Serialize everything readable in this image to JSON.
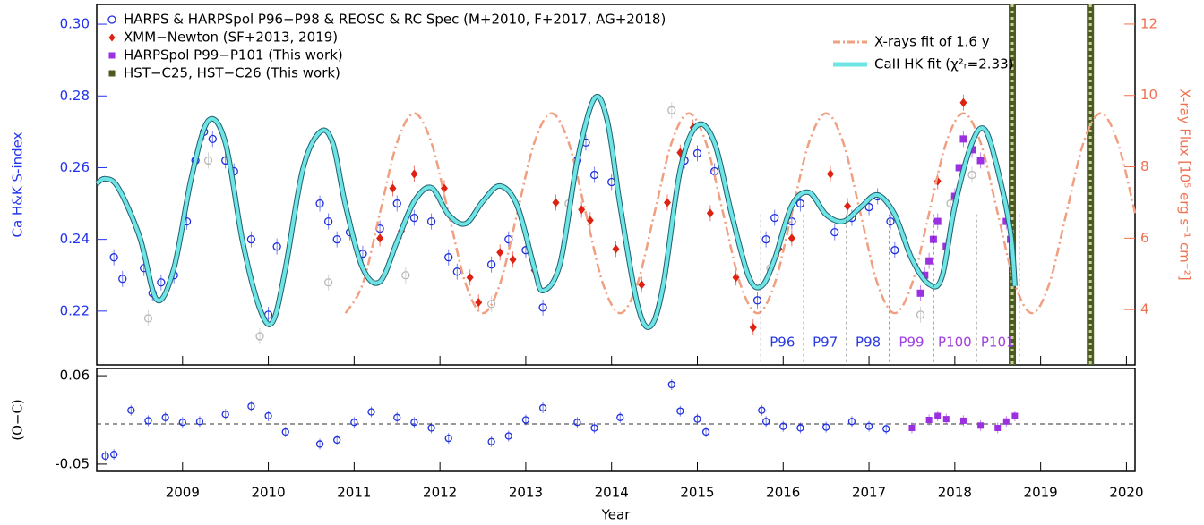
{
  "chart_data": [
    {
      "type": "scatter",
      "ylabel": "Ca H&K S-index",
      "y2label": "X-ray Flux [10⁵ erg s⁻¹ cm⁻²]",
      "xlim": [
        2008.0,
        2020.1
      ],
      "ylim": [
        0.205,
        0.3055
      ],
      "yticks": [
        0.22,
        0.24,
        0.26,
        0.28,
        {
          "value": 0.3,
          "label": "0.30"
        }
      ],
      "y2lim": [
        2.45,
        12.55
      ],
      "y2ticks": [
        4,
        6,
        8,
        10,
        12
      ],
      "ycolor": "#2233ee",
      "y2color": "#f07050",
      "series": [
        {
          "name": "HARPS & HARPSpol P96−P98 & REOSC & RC Spec (M+2010, F+2017, AG+2018)",
          "type": "scatter",
          "marker": "circle",
          "color": "#1f2fe0",
          "x": [
            2008.2,
            2008.3,
            2008.55,
            2008.65,
            2008.75,
            2008.9,
            2009.05,
            2009.15,
            2009.25,
            2009.35,
            2009.5,
            2009.6,
            2009.8,
            2010.0,
            2010.1,
            2010.6,
            2010.7,
            2010.8,
            2010.95,
            2011.1,
            2011.3,
            2011.5,
            2011.7,
            2011.9,
            2012.1,
            2012.2,
            2012.6,
            2012.8,
            2013.0,
            2013.2,
            2013.6,
            2013.7,
            2013.8,
            2014.0,
            2014.85,
            2015.0,
            2015.2,
            2015.7,
            2015.8,
            2015.9,
            2016.1,
            2016.2,
            2016.6,
            2016.8,
            2017.0,
            2017.1,
            2017.25,
            2017.3
          ],
          "values": [
            0.235,
            0.229,
            0.232,
            0.225,
            0.228,
            0.23,
            0.245,
            0.262,
            0.27,
            0.268,
            0.262,
            0.259,
            0.24,
            0.219,
            0.238,
            0.25,
            0.245,
            0.24,
            0.242,
            0.236,
            0.243,
            0.25,
            0.246,
            0.245,
            0.235,
            0.231,
            0.233,
            0.24,
            0.237,
            0.221,
            0.262,
            0.267,
            0.258,
            0.256,
            0.262,
            0.264,
            0.259,
            0.223,
            0.24,
            0.246,
            0.245,
            0.25,
            0.242,
            0.246,
            0.249,
            0.252,
            0.245,
            0.237
          ]
        },
        {
          "type": "scatter",
          "marker": "circle",
          "color": "#b8b8b8",
          "x": [
            2008.6,
            2009.3,
            2009.9,
            2010.7,
            2011.6,
            2012.6,
            2013.5,
            2014.7,
            2015.85,
            2017.6,
            2017.95,
            2018.2
          ],
          "values": [
            0.218,
            0.262,
            0.213,
            0.228,
            0.23,
            0.222,
            0.25,
            0.276,
            0.232,
            0.219,
            0.25,
            0.258
          ]
        },
        {
          "name": "XMM−Newton (SF+2013, 2019)",
          "type": "scatter",
          "marker": "diamond",
          "color": "#e02010",
          "axis": "y2",
          "x": [
            2011.3,
            2011.45,
            2011.55,
            2011.7,
            2012.05,
            2012.35,
            2012.45,
            2012.7,
            2012.85,
            2013.1,
            2013.35,
            2013.65,
            2013.75,
            2014.05,
            2014.35,
            2014.65,
            2014.8,
            2014.95,
            2015.15,
            2015.45,
            2015.65,
            2015.95,
            2016.1,
            2016.55,
            2016.75,
            2017.8,
            2018.1
          ],
          "values": [
            6.0,
            7.4,
            6.2,
            7.8,
            7.4,
            4.9,
            4.2,
            5.6,
            5.4,
            5.1,
            7.0,
            6.8,
            6.5,
            5.7,
            4.7,
            7.0,
            8.4,
            9.1,
            6.7,
            4.9,
            3.5,
            5.7,
            6.0,
            7.8,
            6.9,
            7.6,
            9.8
          ]
        },
        {
          "name": "HARPSpol P99−P101 (This work)",
          "type": "scatter",
          "marker": "square",
          "color": "#9b30e0",
          "x": [
            2017.6,
            2017.65,
            2017.7,
            2017.75,
            2017.8,
            2017.9,
            2018.0,
            2018.05,
            2018.1,
            2018.2,
            2018.3,
            2018.6,
            2018.65
          ],
          "values": [
            0.225,
            0.23,
            0.234,
            0.24,
            0.245,
            0.238,
            0.252,
            0.26,
            0.268,
            0.265,
            0.262,
            0.245,
            0.24
          ]
        },
        {
          "name": "HST−C25, HST−C26 (This work)",
          "type": "vline",
          "marker": "square",
          "color": "#4b5a1e",
          "x": [
            2018.67,
            2019.58
          ]
        },
        {
          "name": "X-rays fit of 1.6 y",
          "type": "line",
          "style": "dashdot",
          "color": "#f0a080",
          "axis": "y2",
          "x": [
            2010.9,
            2011.1,
            2011.3,
            2011.5,
            2011.7,
            2011.9,
            2012.1,
            2012.3,
            2012.5,
            2012.7,
            2012.9,
            2013.1,
            2013.3,
            2013.5,
            2013.7,
            2013.9,
            2014.1,
            2014.3,
            2014.5,
            2014.7,
            2014.9,
            2015.1,
            2015.3,
            2015.5,
            2015.7,
            2015.9,
            2016.1,
            2016.3,
            2016.5,
            2016.7,
            2016.9,
            2017.1,
            2017.3,
            2017.5,
            2017.7,
            2017.9,
            2018.1,
            2018.3,
            2018.5,
            2018.7,
            2018.9,
            2019.1,
            2019.3,
            2019.5,
            2019.7,
            2019.9,
            2020.1
          ],
          "values": [
            3.9,
            4.72,
            6.7,
            8.68,
            9.5,
            8.68,
            6.7,
            4.72,
            3.9,
            4.72,
            6.7,
            8.68,
            9.5,
            8.68,
            6.7,
            4.72,
            3.9,
            4.72,
            6.7,
            8.68,
            9.5,
            8.68,
            6.7,
            4.72,
            3.9,
            4.72,
            6.7,
            8.68,
            9.5,
            8.68,
            6.7,
            4.72,
            3.9,
            4.72,
            6.7,
            8.68,
            9.5,
            8.68,
            6.7,
            4.72,
            3.9,
            4.72,
            6.7,
            8.68,
            9.5,
            8.68,
            6.7
          ]
        },
        {
          "name": "CaII HK fit (χ²ᵣ=2.33)",
          "type": "line",
          "style": "solid",
          "color": "#6ee4e4",
          "x": [
            2008.0,
            2008.1,
            2008.25,
            2008.5,
            2008.7,
            2008.9,
            2009.1,
            2009.3,
            2009.5,
            2009.7,
            2009.9,
            2010.05,
            2010.2,
            2010.4,
            2010.6,
            2010.75,
            2010.9,
            2011.1,
            2011.3,
            2011.5,
            2011.7,
            2011.9,
            2012.1,
            2012.3,
            2012.5,
            2012.7,
            2012.9,
            2013.1,
            2013.2,
            2013.4,
            2013.6,
            2013.8,
            2013.95,
            2014.1,
            2014.3,
            2014.45,
            2014.6,
            2014.8,
            2015.0,
            2015.2,
            2015.4,
            2015.6,
            2015.75,
            2015.9,
            2016.1,
            2016.3,
            2016.5,
            2016.7,
            2016.9,
            2017.1,
            2017.3,
            2017.5,
            2017.7,
            2017.85,
            2018.0,
            2018.2,
            2018.35,
            2018.5,
            2018.65,
            2018.7
          ],
          "values": [
            0.2556,
            0.2569,
            0.2544,
            0.2407,
            0.2232,
            0.232,
            0.2569,
            0.2731,
            0.2669,
            0.2394,
            0.2207,
            0.217,
            0.232,
            0.2594,
            0.2699,
            0.2669,
            0.2494,
            0.232,
            0.2282,
            0.2394,
            0.2506,
            0.2544,
            0.2469,
            0.2444,
            0.2506,
            0.2549,
            0.2494,
            0.232,
            0.2257,
            0.2332,
            0.2619,
            0.2793,
            0.2731,
            0.2494,
            0.222,
            0.2157,
            0.227,
            0.2594,
            0.2718,
            0.2669,
            0.2469,
            0.2295,
            0.227,
            0.2345,
            0.2494,
            0.2531,
            0.2469,
            0.245,
            0.2489,
            0.2524,
            0.2469,
            0.2345,
            0.2275,
            0.2295,
            0.2494,
            0.2669,
            0.2706,
            0.2594,
            0.2419,
            0.227
          ]
        }
      ],
      "phases": {
        "labels": [
          "P96",
          "P97",
          "P98",
          "P99",
          "P100",
          "P101"
        ],
        "edges": [
          2015.74,
          2016.24,
          2016.74,
          2017.24,
          2017.75,
          2018.25,
          2018.75
        ],
        "colors": [
          "#2a3be0",
          "#2a3be0",
          "#2a3be0",
          "#a040e0",
          "#a040e0",
          "#a040e0"
        ]
      }
    },
    {
      "type": "scatter",
      "ylabel": "(O−C)",
      "xlabel": "Year",
      "xlim": [
        2008.0,
        2020.1
      ],
      "xticks": [
        2009,
        2010,
        2011,
        2012,
        2013,
        2014,
        2015,
        2016,
        2017,
        2018,
        2019,
        2020
      ],
      "ylim": [
        -0.059,
        0.069
      ],
      "yticks": [
        -0.05,
        0.06
      ],
      "reference_line": 0,
      "series": [
        {
          "type": "scatter",
          "marker": "circle",
          "color": "#1f2fe0",
          "x": [
            2008.1,
            2008.2,
            2008.4,
            2008.6,
            2008.8,
            2009.0,
            2009.2,
            2009.5,
            2009.8,
            2010.0,
            2010.2,
            2010.6,
            2010.8,
            2011.0,
            2011.2,
            2011.5,
            2011.7,
            2011.9,
            2012.1,
            2012.6,
            2012.8,
            2013.0,
            2013.2,
            2013.6,
            2013.8,
            2014.1,
            2014.7,
            2014.8,
            2015.0,
            2015.1,
            2015.75,
            2015.8,
            2016.0,
            2016.2,
            2016.5,
            2016.8,
            2017.0,
            2017.2
          ],
          "values": [
            -0.04,
            -0.038,
            0.017,
            0.004,
            0.008,
            0.002,
            0.003,
            0.012,
            0.022,
            0.01,
            -0.01,
            -0.025,
            -0.02,
            0.002,
            0.015,
            0.008,
            0.002,
            -0.005,
            -0.018,
            -0.022,
            -0.015,
            0.005,
            0.02,
            0.002,
            -0.005,
            0.008,
            0.049,
            0.016,
            0.006,
            -0.01,
            0.017,
            0.003,
            -0.003,
            -0.005,
            -0.004,
            0.003,
            -0.003,
            -0.006
          ]
        },
        {
          "type": "scatter",
          "marker": "square",
          "color": "#9b30e0",
          "x": [
            2017.5,
            2017.7,
            2017.8,
            2017.9,
            2018.1,
            2018.3,
            2018.5,
            2018.6,
            2018.7
          ],
          "values": [
            -0.005,
            0.005,
            0.01,
            0.006,
            0.004,
            -0.002,
            -0.005,
            0.003,
            0.01
          ]
        }
      ]
    }
  ]
}
